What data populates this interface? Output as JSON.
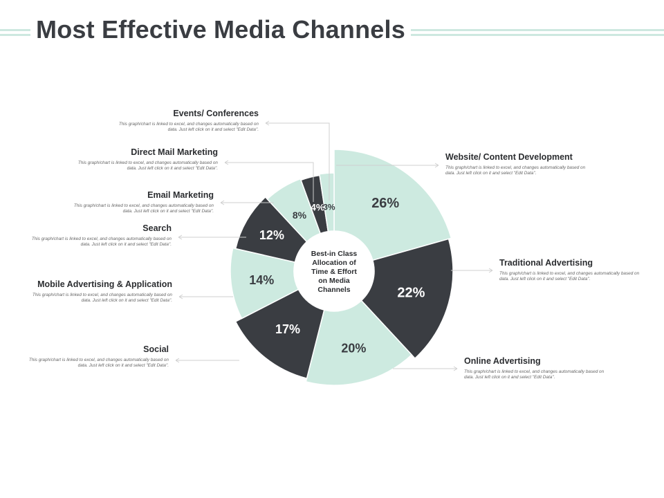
{
  "page": {
    "title": "Most Effective Media Channels"
  },
  "colors": {
    "mint": "#cdeae0",
    "dark": "#3a3d42",
    "line": "#cfcfcf",
    "title": "#3a3d42"
  },
  "chart_data": {
    "type": "pie",
    "center_label": "Best-in Class Allocation of Time & Effort on Media Channels",
    "slices": [
      {
        "name": "Website/ Content Development",
        "value": 26,
        "label": "26%",
        "color": "#cdeae0",
        "desc": "This graph/chart is linked to excel, and changes automatically based on data. Just left click on it and select \"Edit Data\"."
      },
      {
        "name": "Traditional Advertising",
        "value": 22,
        "label": "22%",
        "color": "#3a3d42",
        "desc": "This graph/chart is linked to excel, and changes automatically based on data. Just left click on it and select \"Edit Data\"."
      },
      {
        "name": "Online Advertising",
        "value": 20,
        "label": "20%",
        "color": "#cdeae0",
        "desc": "This graph/chart is linked to excel, and changes automatically based on data. Just left click on it and select \"Edit Data\"."
      },
      {
        "name": "Social",
        "value": 17,
        "label": "17%",
        "color": "#3a3d42",
        "desc": "This graph/chart is linked to excel, and changes automatically based on data. Just left click on it and select \"Edit Data\"."
      },
      {
        "name": "Mobile Advertising & Application",
        "value": 14,
        "label": "14%",
        "color": "#cdeae0",
        "desc": "This graph/chart is linked to excel, and changes automatically based on data. Just left click on it and select \"Edit Data\"."
      },
      {
        "name": "Search",
        "value": 12,
        "label": "12%",
        "color": "#3a3d42",
        "desc": "This graph/chart is linked to excel, and changes automatically based on data. Just left click on it and select \"Edit Data\"."
      },
      {
        "name": "Email Marketing",
        "value": 8,
        "label": "8%",
        "color": "#cdeae0",
        "desc": "This graph/chart is linked to excel, and changes automatically based on data. Just left click on it and select \"Edit Data\"."
      },
      {
        "name": "Direct Mail Marketing",
        "value": 4,
        "label": "4%",
        "color": "#3a3d42",
        "desc": "This graph/chart is linked to excel, and changes automatically based on data. Just left click on it and select \"Edit Data\"."
      },
      {
        "name": "Events/ Conferences",
        "value": 3,
        "label": "3%",
        "color": "#cdeae0",
        "desc": "This graph/chart is linked to excel, and changes automatically based on data. Just left click on it and select \"Edit Data\"."
      }
    ]
  }
}
